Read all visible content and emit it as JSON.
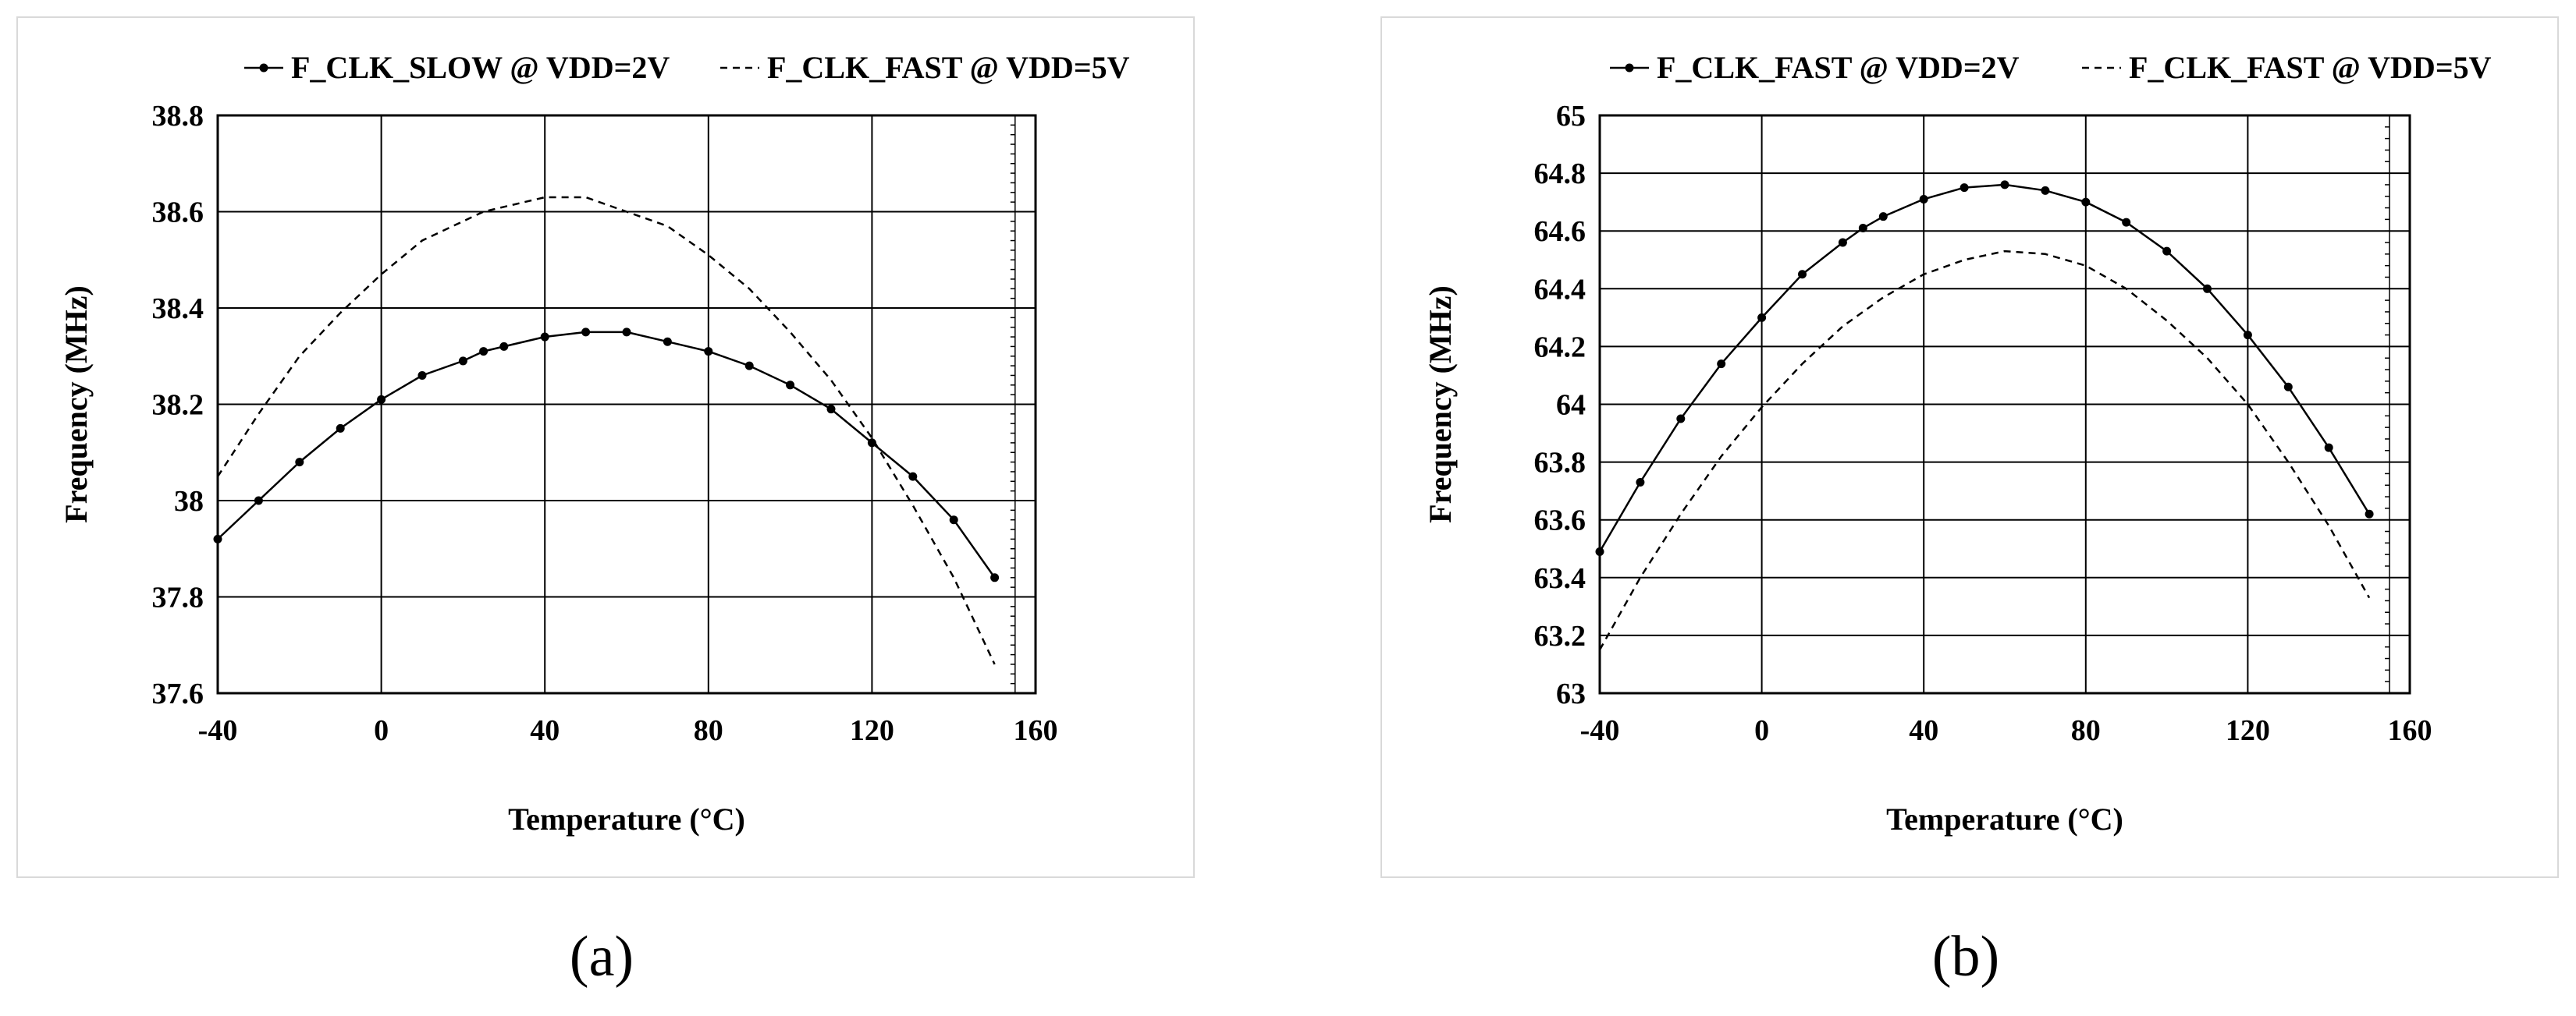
{
  "panels": [
    {
      "caption": "(a)",
      "chart_data": {
        "type": "line",
        "title": "",
        "xlabel": "Temperature (°C)",
        "ylabel": "Frequency (MHz)",
        "xlim": [
          -40,
          160
        ],
        "ylim": [
          37.6,
          38.8
        ],
        "xticks": [
          -40,
          0,
          40,
          80,
          120,
          160
        ],
        "xtick_labels": [
          "-40",
          "0",
          "40",
          "80",
          "120",
          "160"
        ],
        "yticks": [
          37.6,
          37.8,
          38.0,
          38.2,
          38.4,
          38.6,
          38.8
        ],
        "ytick_labels": [
          "37.6",
          "37.8",
          "38",
          "38.2",
          "38.4",
          "38.6",
          "38.8"
        ],
        "minor_tick_step": 0.02,
        "grid": true,
        "legend_position": "top",
        "series": [
          {
            "name": "F_CLK_SLOW @ VDD=2V",
            "style": "solid-markers",
            "x": [
              -40,
              -30,
              -20,
              -10,
              0,
              10,
              20,
              25,
              30,
              40,
              50,
              60,
              70,
              80,
              90,
              100,
              110,
              120,
              130,
              140,
              150
            ],
            "y": [
              37.92,
              38.0,
              38.08,
              38.15,
              38.21,
              38.26,
              38.29,
              38.31,
              38.32,
              38.34,
              38.35,
              38.35,
              38.33,
              38.31,
              38.28,
              38.24,
              38.19,
              38.12,
              38.05,
              37.96,
              37.84
            ]
          },
          {
            "name": "F_CLK_FAST @ VDD=5V",
            "style": "dashed",
            "x": [
              -40,
              -30,
              -20,
              -10,
              0,
              10,
              20,
              25,
              30,
              40,
              50,
              60,
              70,
              80,
              90,
              100,
              110,
              120,
              130,
              140,
              150
            ],
            "y": [
              38.05,
              38.18,
              38.3,
              38.39,
              38.47,
              38.54,
              38.58,
              38.6,
              38.61,
              38.63,
              38.63,
              38.6,
              38.57,
              38.51,
              38.44,
              38.35,
              38.25,
              38.13,
              37.99,
              37.84,
              37.66
            ]
          }
        ]
      }
    },
    {
      "caption": "(b)",
      "chart_data": {
        "type": "line",
        "title": "",
        "xlabel": "Temperature (°C)",
        "ylabel": "Frequency (MHz)",
        "xlim": [
          -40,
          160
        ],
        "ylim": [
          63.0,
          65.0
        ],
        "xticks": [
          -40,
          0,
          40,
          80,
          120,
          160
        ],
        "xtick_labels": [
          "-40",
          "0",
          "40",
          "80",
          "120",
          "160"
        ],
        "yticks": [
          63.0,
          63.2,
          63.4,
          63.6,
          63.8,
          64.0,
          64.2,
          64.4,
          64.6,
          64.8,
          65.0
        ],
        "ytick_labels": [
          "63",
          "63.2",
          "63.4",
          "63.6",
          "63.8",
          "64",
          "64.2",
          "64.4",
          "64.6",
          "64.8",
          "65"
        ],
        "minor_tick_step": 0.04,
        "grid": true,
        "legend_position": "top",
        "series": [
          {
            "name": "F_CLK_FAST @ VDD=2V",
            "style": "solid-markers",
            "x": [
              -40,
              -30,
              -20,
              -10,
              0,
              10,
              20,
              25,
              30,
              40,
              50,
              60,
              70,
              80,
              90,
              100,
              110,
              120,
              130,
              140,
              150
            ],
            "y": [
              63.49,
              63.73,
              63.95,
              64.14,
              64.3,
              64.45,
              64.56,
              64.61,
              64.65,
              64.71,
              64.75,
              64.76,
              64.74,
              64.7,
              64.63,
              64.53,
              64.4,
              64.24,
              64.06,
              63.85,
              63.62
            ]
          },
          {
            "name": "F_CLK_FAST @ VDD=5V",
            "style": "dashed",
            "x": [
              -40,
              -30,
              -20,
              -10,
              0,
              10,
              20,
              25,
              30,
              40,
              50,
              60,
              70,
              80,
              90,
              100,
              110,
              120,
              130,
              140,
              150
            ],
            "y": [
              63.15,
              63.4,
              63.62,
              63.82,
              63.99,
              64.14,
              64.27,
              64.32,
              64.37,
              64.45,
              64.5,
              64.53,
              64.52,
              64.48,
              64.4,
              64.29,
              64.16,
              64.0,
              63.8,
              63.58,
              63.33
            ]
          }
        ]
      }
    }
  ]
}
